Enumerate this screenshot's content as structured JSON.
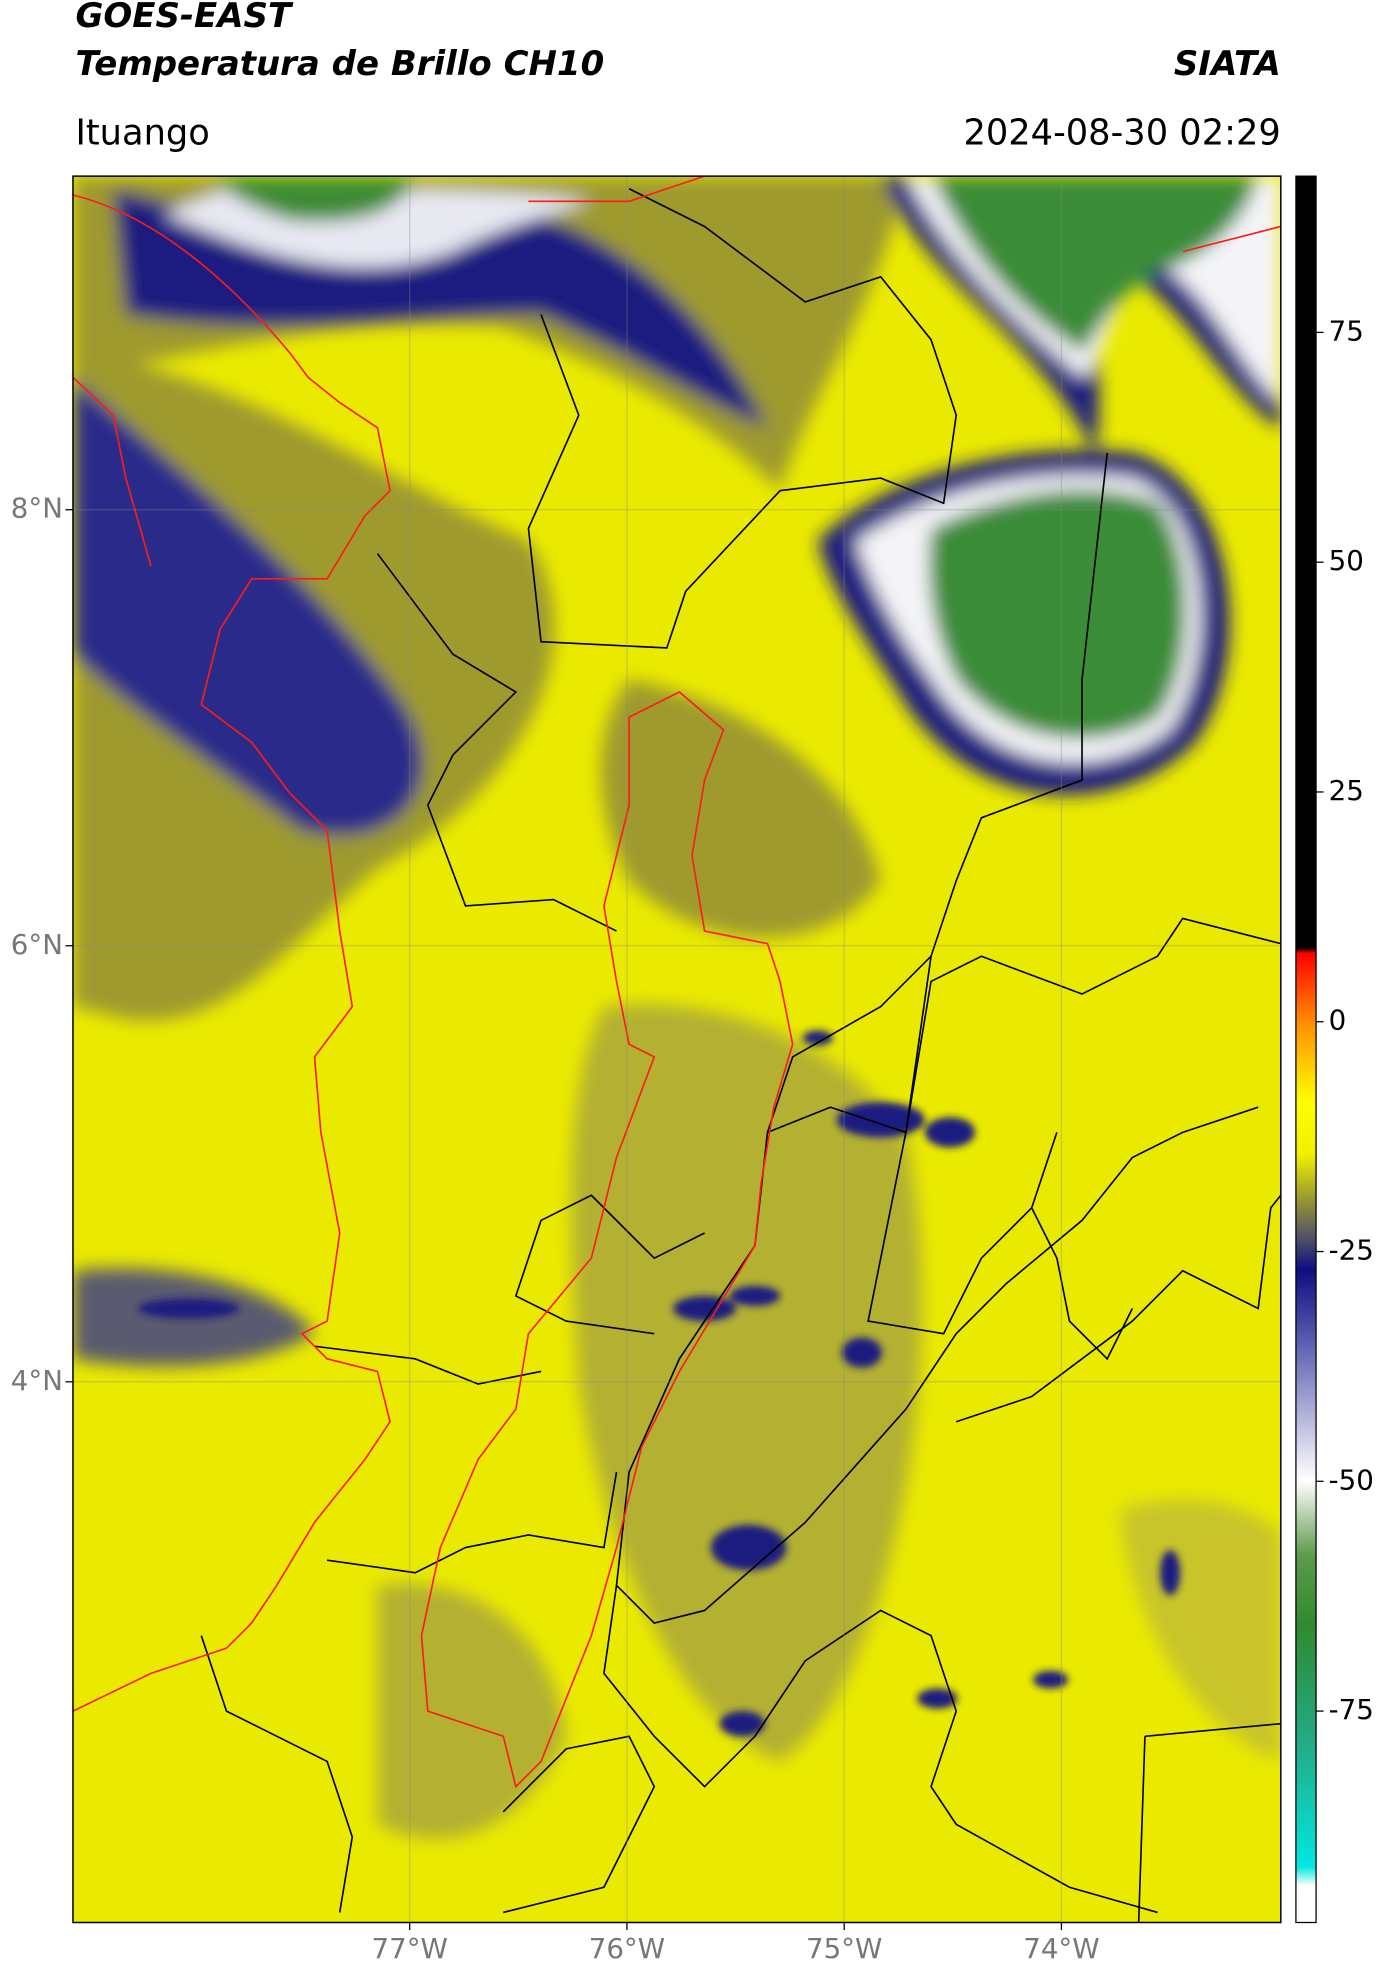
{
  "header": {
    "title": "GOES-EAST",
    "subtitle": "Temperatura de Brillo CH10",
    "source": "SIATA",
    "location": "Ituango",
    "timestamp": "2024-08-30 02:29"
  },
  "map": {
    "xlim": [
      -78.55,
      -72.99
    ],
    "ylim": [
      1.52,
      9.53
    ],
    "xticks": [
      {
        "value": -77,
        "label": "77°W"
      },
      {
        "value": -76,
        "label": "76°W"
      },
      {
        "value": -75,
        "label": "75°W"
      },
      {
        "value": -74,
        "label": "74°W"
      }
    ],
    "yticks": [
      {
        "value": 4,
        "label": "4°N"
      },
      {
        "value": 6,
        "label": "6°N"
      },
      {
        "value": 8,
        "label": "8°N"
      }
    ],
    "grid": true
  },
  "colorbar": {
    "ylim": [
      -98,
      92
    ],
    "yticks": [
      -75,
      -50,
      -25,
      0,
      25,
      50,
      75
    ]
  }
}
